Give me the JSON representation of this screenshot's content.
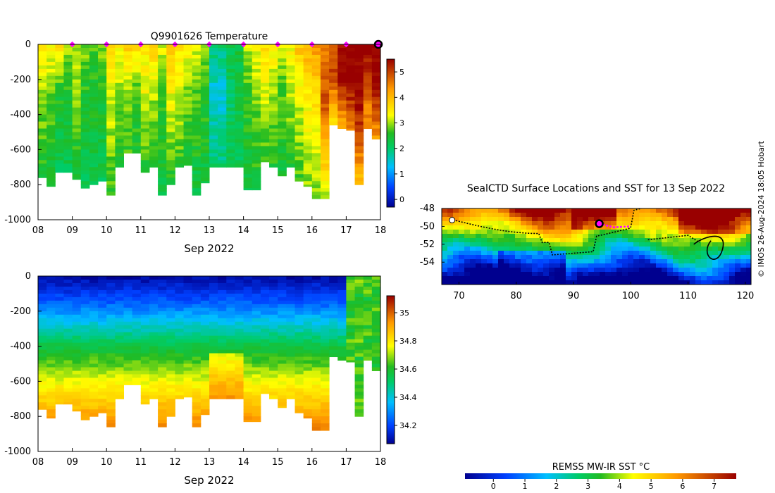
{
  "chart_data": [
    {
      "type": "heatmap",
      "title": "Q9901626  Temperature",
      "xlabel": "Sep 2022",
      "ylabel": "",
      "x_ticks": [
        "08",
        "09",
        "10",
        "11",
        "12",
        "13",
        "14",
        "15",
        "16",
        "17",
        "18"
      ],
      "y_ticks": [
        0,
        -200,
        -400,
        -600,
        -800,
        -1000
      ],
      "xlim": [
        8,
        18
      ],
      "ylim": [
        -1000,
        0
      ],
      "colorbar": {
        "ticks": [
          "0",
          "1",
          "2",
          "3",
          "4",
          "5"
        ],
        "range": [
          -0.3,
          5.5
        ]
      },
      "markers": {
        "color": "#ff00ff",
        "x": [
          9,
          10,
          11,
          12,
          13,
          14,
          15,
          16,
          17
        ],
        "last_x": 18
      },
      "profiles": [
        {
          "x": 8.0,
          "depth": 760,
          "top": 3.6,
          "mid": 3.0,
          "deep": 2.4
        },
        {
          "x": 8.25,
          "depth": 810,
          "top": 3.4,
          "mid": 2.8,
          "deep": 2.3
        },
        {
          "x": 8.5,
          "depth": 730,
          "top": 3.7,
          "mid": 2.5,
          "deep": 2.2
        },
        {
          "x": 8.75,
          "depth": 730,
          "top": 3.0,
          "mid": 2.6,
          "deep": 2.2
        },
        {
          "x": 9.0,
          "depth": 770,
          "top": 3.1,
          "mid": 2.9,
          "deep": 2.3
        },
        {
          "x": 9.25,
          "depth": 820,
          "top": 2.9,
          "mid": 2.5,
          "deep": 2.2
        },
        {
          "x": 9.5,
          "depth": 800,
          "top": 2.7,
          "mid": 2.5,
          "deep": 2.2
        },
        {
          "x": 9.75,
          "depth": 780,
          "top": 2.9,
          "mid": 2.5,
          "deep": 2.2
        },
        {
          "x": 10.0,
          "depth": 860,
          "top": 3.8,
          "mid": 3.2,
          "deep": 2.6
        },
        {
          "x": 10.25,
          "depth": 700,
          "top": 3.5,
          "mid": 3.0,
          "deep": 2.4
        },
        {
          "x": 10.5,
          "depth": 620,
          "top": 3.8,
          "mid": 3.1,
          "deep": 2.6
        },
        {
          "x": 10.75,
          "depth": 620,
          "top": 3.6,
          "mid": 2.8,
          "deep": 2.4
        },
        {
          "x": 11.0,
          "depth": 730,
          "top": 3.5,
          "mid": 3.3,
          "deep": 2.5
        },
        {
          "x": 11.25,
          "depth": 700,
          "top": 3.7,
          "mid": 3.1,
          "deep": 2.4
        },
        {
          "x": 11.5,
          "depth": 860,
          "top": 3.2,
          "mid": 2.7,
          "deep": 2.3
        },
        {
          "x": 11.75,
          "depth": 800,
          "top": 3.8,
          "mid": 3.3,
          "deep": 2.5
        },
        {
          "x": 12.0,
          "depth": 700,
          "top": 3.6,
          "mid": 3.2,
          "deep": 2.6
        },
        {
          "x": 12.25,
          "depth": 690,
          "top": 3.4,
          "mid": 2.9,
          "deep": 2.4
        },
        {
          "x": 12.5,
          "depth": 860,
          "top": 3.2,
          "mid": 2.7,
          "deep": 2.3
        },
        {
          "x": 12.75,
          "depth": 790,
          "top": 3.0,
          "mid": 2.6,
          "deep": 2.3
        },
        {
          "x": 13.0,
          "depth": 700,
          "top": 2.0,
          "mid": 1.5,
          "deep": 2.0
        },
        {
          "x": 13.25,
          "depth": 700,
          "top": 2.0,
          "mid": 1.4,
          "deep": 2.0
        },
        {
          "x": 13.5,
          "depth": 700,
          "top": 2.3,
          "mid": 2.1,
          "deep": 2.1
        },
        {
          "x": 13.75,
          "depth": 700,
          "top": 2.4,
          "mid": 2.3,
          "deep": 2.2
        },
        {
          "x": 14.0,
          "depth": 830,
          "top": 3.1,
          "mid": 2.6,
          "deep": 2.3
        },
        {
          "x": 14.25,
          "depth": 830,
          "top": 3.3,
          "mid": 2.9,
          "deep": 2.4
        },
        {
          "x": 14.5,
          "depth": 670,
          "top": 3.6,
          "mid": 3.2,
          "deep": 2.6
        },
        {
          "x": 14.75,
          "depth": 700,
          "top": 3.5,
          "mid": 3.0,
          "deep": 2.5
        },
        {
          "x": 15.0,
          "depth": 750,
          "top": 3.2,
          "mid": 2.7,
          "deep": 2.4
        },
        {
          "x": 15.25,
          "depth": 700,
          "top": 3.4,
          "mid": 3.1,
          "deep": 2.5
        },
        {
          "x": 15.5,
          "depth": 780,
          "top": 3.9,
          "mid": 3.2,
          "deep": 2.7
        },
        {
          "x": 15.75,
          "depth": 810,
          "top": 4.1,
          "mid": 3.5,
          "deep": 2.9
        },
        {
          "x": 16.0,
          "depth": 880,
          "top": 4.3,
          "mid": 3.6,
          "deep": 2.8
        },
        {
          "x": 16.25,
          "depth": 880,
          "top": 4.6,
          "mid": 4.9,
          "deep": 3.0
        },
        {
          "x": 16.5,
          "depth": 460,
          "top": 4.8,
          "mid": 5.0,
          "deep": 3.5
        },
        {
          "x": 16.75,
          "depth": 480,
          "top": 5.5,
          "mid": 5.6,
          "deep": 4.0
        },
        {
          "x": 17.0,
          "depth": 490,
          "top": 5.6,
          "mid": 5.6,
          "deep": 4.5
        },
        {
          "x": 17.25,
          "depth": 800,
          "top": 5.6,
          "mid": 5.6,
          "deep": 3.9
        },
        {
          "x": 17.5,
          "depth": 480,
          "top": 5.6,
          "mid": 5.0,
          "deep": 4.3
        },
        {
          "x": 17.75,
          "depth": 540,
          "top": 5.6,
          "mid": 5.6,
          "deep": 4.2
        }
      ]
    },
    {
      "type": "heatmap",
      "title": "",
      "xlabel": "Sep 2022",
      "ylabel": "",
      "x_ticks": [
        "08",
        "09",
        "10",
        "11",
        "12",
        "13",
        "14",
        "15",
        "16",
        "17",
        "18"
      ],
      "y_ticks": [
        0,
        -200,
        -400,
        -600,
        -800,
        -1000
      ],
      "xlim": [
        8,
        18
      ],
      "ylim": [
        -1000,
        0
      ],
      "colorbar": {
        "ticks": [
          "34.2",
          "34.4",
          "34.6",
          "34.8",
          "35"
        ],
        "range": [
          34.07,
          35.12
        ]
      },
      "variable": "salinity"
    },
    {
      "type": "heatmap",
      "title": "SealCTD Surface Locations and SST for 13 Sep 2022",
      "xlabel": "",
      "ylabel": "",
      "x_ticks": [
        "70",
        "80",
        "90",
        "100",
        "110",
        "120"
      ],
      "y_ticks": [
        "-48",
        "-50",
        "-52",
        "-54"
      ],
      "xlim": [
        67,
        121
      ],
      "ylim": [
        -56.5,
        -48
      ],
      "colorbar": {
        "label": "REMSS MW-IR SST °C",
        "ticks": [
          "0",
          "1",
          "2",
          "3",
          "4",
          "5",
          "6",
          "7"
        ],
        "range": [
          -0.9,
          7.7
        ]
      },
      "track_color": "#000000",
      "recent_track_color": "#ff00ff",
      "current_position": {
        "lon": 94.5,
        "lat": -49.7
      }
    }
  ],
  "credit": "© IMOS 26-Aug-2024 18:05 Hobart"
}
